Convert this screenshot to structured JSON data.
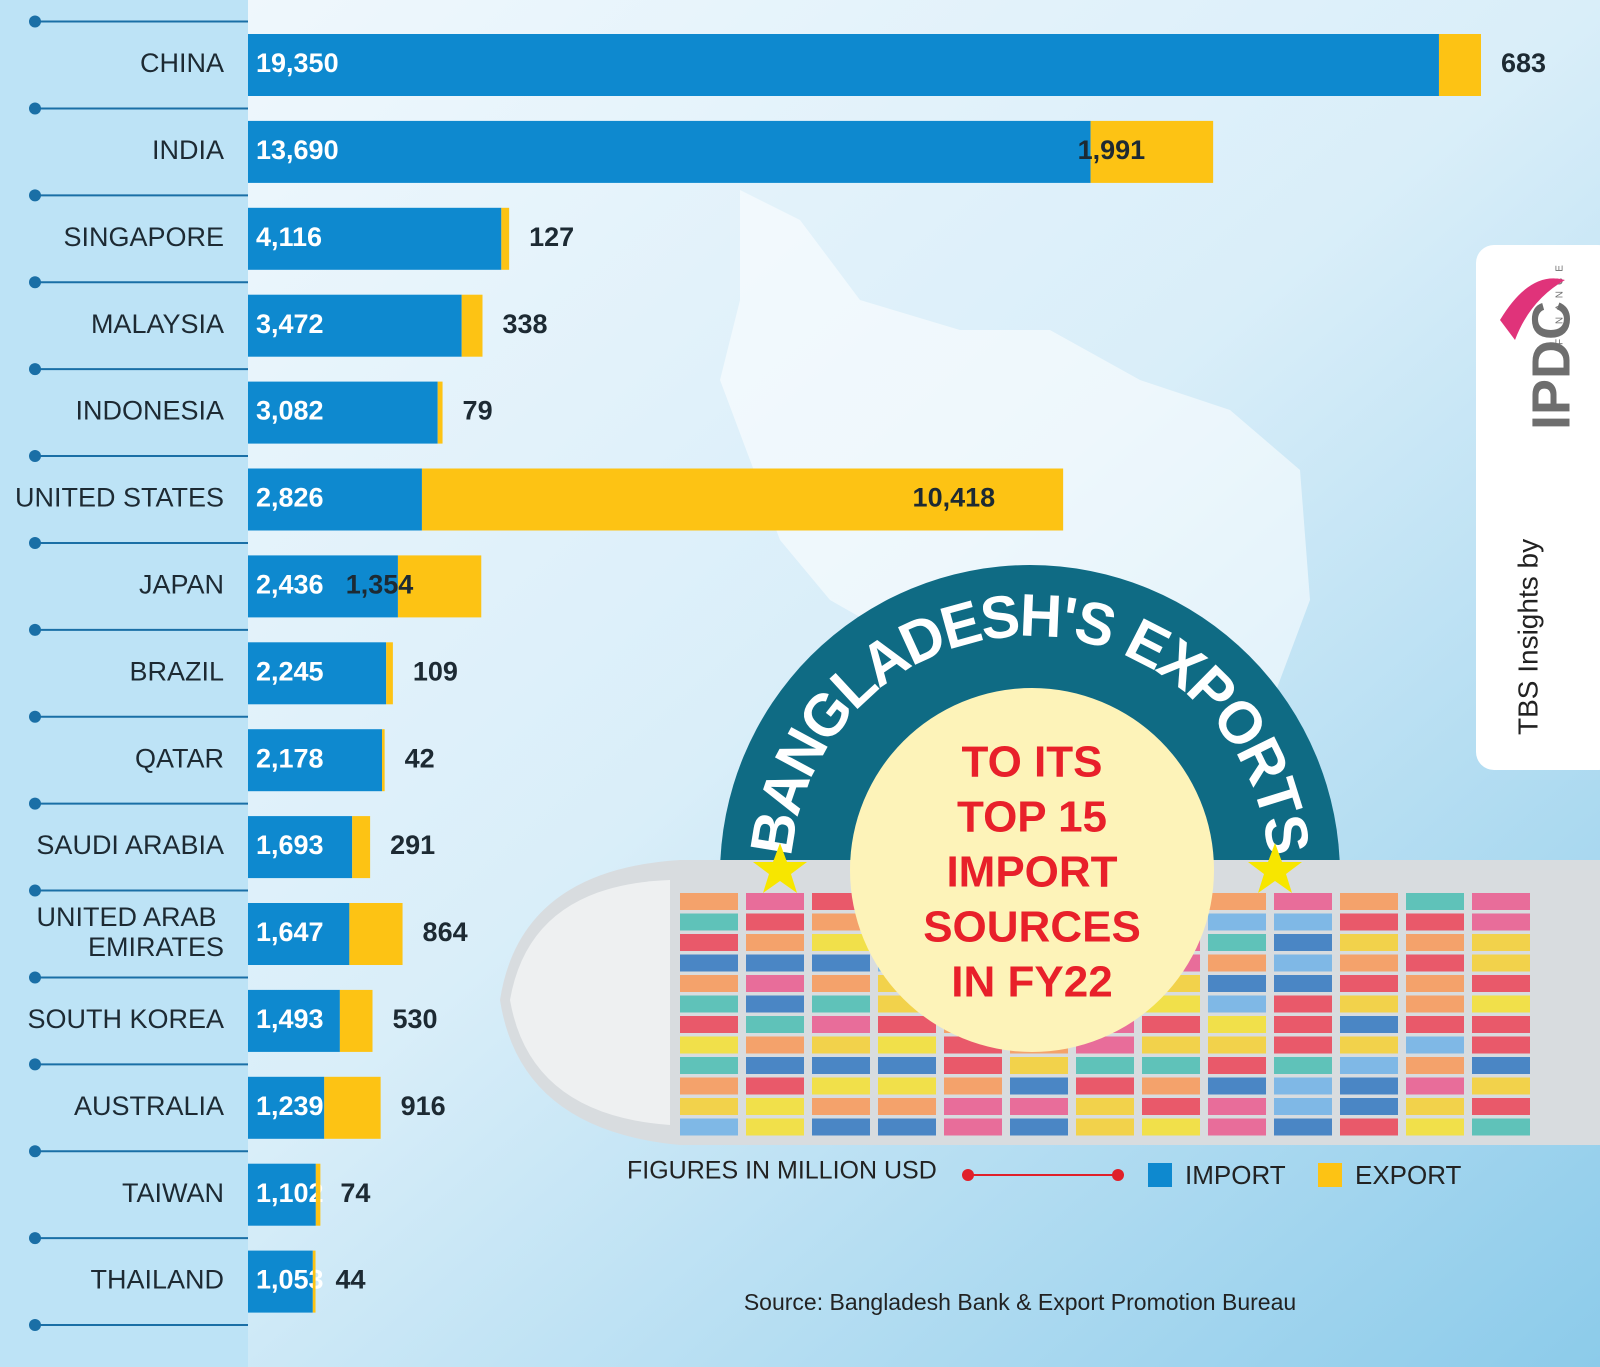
{
  "chart_data": {
    "type": "bar",
    "stacked": true,
    "orientation": "horizontal",
    "title": "BANGLADESH'S EXPORTS",
    "subtitle": [
      "TO ITS",
      "TOP 15",
      "IMPORT",
      "SOURCES",
      "IN FY22"
    ],
    "note": "FIGURES IN MILLION USD",
    "source": "Source: Bangladesh Bank & Export Promotion Bureau",
    "credit": "TBS Insights by",
    "brand": "IPDC",
    "brand_sub": "FINANCE",
    "categories": [
      "CHINA",
      "INDIA",
      "SINGAPORE",
      "MALAYSIA",
      "INDONESIA",
      "UNITED STATES",
      "JAPAN",
      "BRAZIL",
      "QATAR",
      "SAUDI ARABIA",
      "UNITED ARAB EMIRATES",
      "SOUTH KOREA",
      "AUSTRALIA",
      "TAIWAN",
      "THAILAND"
    ],
    "series": [
      {
        "name": "IMPORT",
        "color": "#0e89cf",
        "values": [
          19350,
          13690,
          4116,
          3472,
          3082,
          2826,
          2436,
          2245,
          2178,
          1693,
          1647,
          1493,
          1239,
          1102,
          1053
        ],
        "value_labels": [
          "19,350",
          "13,690",
          "4,116",
          "3,472",
          "3,082",
          "2,826",
          "2,436",
          "2,245",
          "2,178",
          "1,693",
          "1,647",
          "1,493",
          "1,239",
          "1,102",
          "1,053"
        ]
      },
      {
        "name": "EXPORT",
        "color": "#fdc314",
        "values": [
          683,
          1991,
          127,
          338,
          79,
          10418,
          1354,
          109,
          42,
          291,
          864,
          530,
          916,
          74,
          44
        ],
        "value_labels": [
          "683",
          "1,991",
          "127",
          "338",
          "79",
          "10,418",
          "1,354",
          "109",
          "42",
          "291",
          "864",
          "530",
          "916",
          "74",
          "44"
        ]
      }
    ]
  }
}
